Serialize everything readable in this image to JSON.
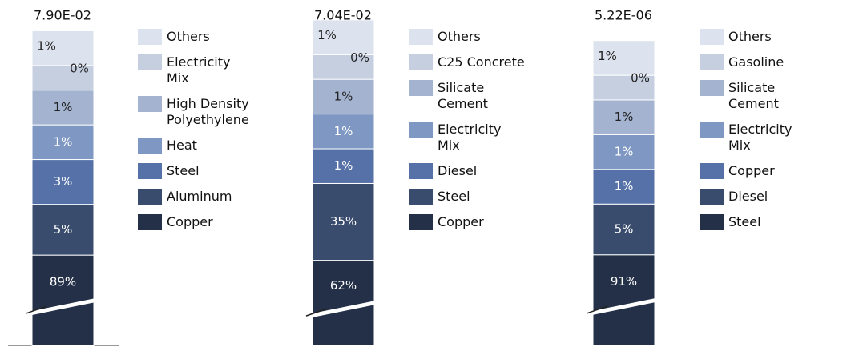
{
  "chart_data": [
    {
      "type": "stacked_bar",
      "title": "7.90E-02",
      "series": [
        {
          "name": "Others",
          "color": "#dde3ee",
          "values": [
            1
          ],
          "value_labels": [
            "1%"
          ]
        },
        {
          "name": "Electricity Mix",
          "color": "#c5cfe0",
          "values": [
            0
          ],
          "value_labels": [
            "0%"
          ]
        },
        {
          "name": "High Density Polyethylene",
          "color": "#a3b3d0",
          "values": [
            1
          ],
          "value_labels": [
            "1%"
          ]
        },
        {
          "name": "Heat",
          "color": "#7f98c3",
          "values": [
            1
          ],
          "value_labels": [
            "1%"
          ]
        },
        {
          "name": "Steel",
          "color": "#5571a8",
          "values": [
            3
          ],
          "value_labels": [
            "3%"
          ]
        },
        {
          "name": "Aluminum",
          "color": "#3a4c6e",
          "values": [
            5
          ],
          "value_labels": [
            "5%"
          ]
        },
        {
          "name": "Copper",
          "color": "#233047",
          "values": [
            89
          ],
          "value_labels": [
            "89%"
          ]
        }
      ]
    },
    {
      "type": "stacked_bar",
      "title": "7.04E-02",
      "series": [
        {
          "name": "Others",
          "color": "#dde3ee",
          "values": [
            1
          ],
          "value_labels": [
            "1%"
          ]
        },
        {
          "name": "C25 Concrete",
          "color": "#c5cfe0",
          "values": [
            0
          ],
          "value_labels": [
            "0%"
          ]
        },
        {
          "name": "Silicate Cement",
          "color": "#a3b3d0",
          "values": [
            1
          ],
          "value_labels": [
            "1%"
          ]
        },
        {
          "name": "Electricity Mix",
          "color": "#7f98c3",
          "values": [
            1
          ],
          "value_labels": [
            "1%"
          ]
        },
        {
          "name": "Diesel",
          "color": "#5571a8",
          "values": [
            1
          ],
          "value_labels": [
            "1%"
          ]
        },
        {
          "name": "Steel",
          "color": "#3a4c6e",
          "values": [
            35
          ],
          "value_labels": [
            "35%"
          ]
        },
        {
          "name": "Copper",
          "color": "#233047",
          "values": [
            62
          ],
          "value_labels": [
            "62%"
          ]
        }
      ]
    },
    {
      "type": "stacked_bar",
      "title": "5.22E-06",
      "series": [
        {
          "name": "Others",
          "color": "#dde3ee",
          "values": [
            1
          ],
          "value_labels": [
            "1%"
          ]
        },
        {
          "name": "Gasoline",
          "color": "#c5cfe0",
          "values": [
            0
          ],
          "value_labels": [
            "0%"
          ]
        },
        {
          "name": "Silicate Cement",
          "color": "#a3b3d0",
          "values": [
            1
          ],
          "value_labels": [
            "1%"
          ]
        },
        {
          "name": "Electricity Mix",
          "color": "#7f98c3",
          "values": [
            1
          ],
          "value_labels": [
            "1%"
          ]
        },
        {
          "name": "Copper",
          "color": "#5571a8",
          "values": [
            1
          ],
          "value_labels": [
            "1%"
          ]
        },
        {
          "name": "Diesel",
          "color": "#3a4c6e",
          "values": [
            5
          ],
          "value_labels": [
            "5%"
          ]
        },
        {
          "name": "Steel",
          "color": "#233047",
          "values": [
            91
          ],
          "value_labels": [
            "91%"
          ]
        }
      ]
    }
  ]
}
